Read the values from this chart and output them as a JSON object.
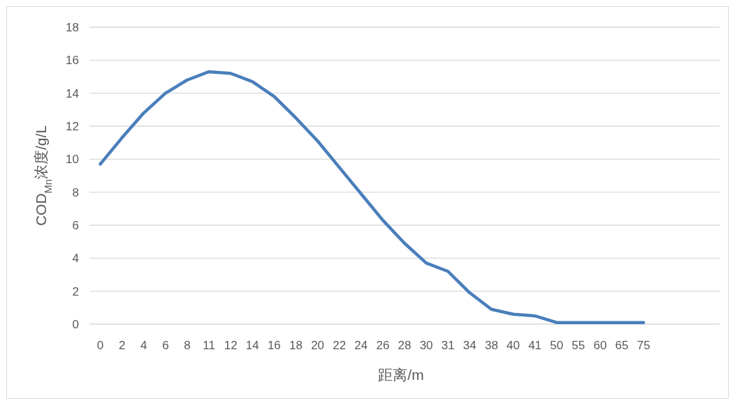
{
  "chart_data": {
    "type": "line",
    "xlabel": "距离/m",
    "ylabel": "COD$_{Mn}$浓度/g/L",
    "categories": [
      "0",
      "2",
      "4",
      "6",
      "8",
      "11",
      "12",
      "14",
      "16",
      "18",
      "20",
      "22",
      "24",
      "26",
      "28",
      "30",
      "31",
      "34",
      "38",
      "40",
      "41",
      "50",
      "55",
      "60",
      "65",
      "75",
      null,
      null,
      null
    ],
    "series": [
      {
        "color": "#4a7ebb",
        "values": [
          9.7,
          11.3,
          12.8,
          14.0,
          14.8,
          15.3,
          15.2,
          14.7,
          13.8,
          12.5,
          11.1,
          9.5,
          7.9,
          6.3,
          4.9,
          3.7,
          3.2,
          1.9,
          0.9,
          0.6,
          0.5,
          0.1,
          0.1,
          0.1,
          0.1,
          0.1,
          null,
          null,
          null
        ]
      }
    ],
    "ylim": [
      0,
      18
    ],
    "yticks": [
      0,
      2,
      4,
      6,
      8,
      10,
      12,
      14,
      16,
      18
    ],
    "grid": "y",
    "marker": "none",
    "line_style": "solid"
  }
}
